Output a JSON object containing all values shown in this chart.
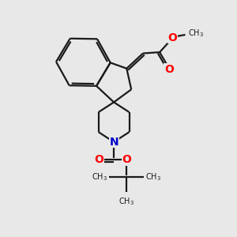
{
  "bg_color": "#e8e8e8",
  "bond_color": "#1a1a1a",
  "o_color": "#ff0000",
  "n_color": "#0000cc",
  "lw": 1.6,
  "figsize": [
    3.0,
    3.0
  ],
  "dpi": 100,
  "xlim": [
    0,
    10
  ],
  "ylim": [
    0,
    10
  ]
}
